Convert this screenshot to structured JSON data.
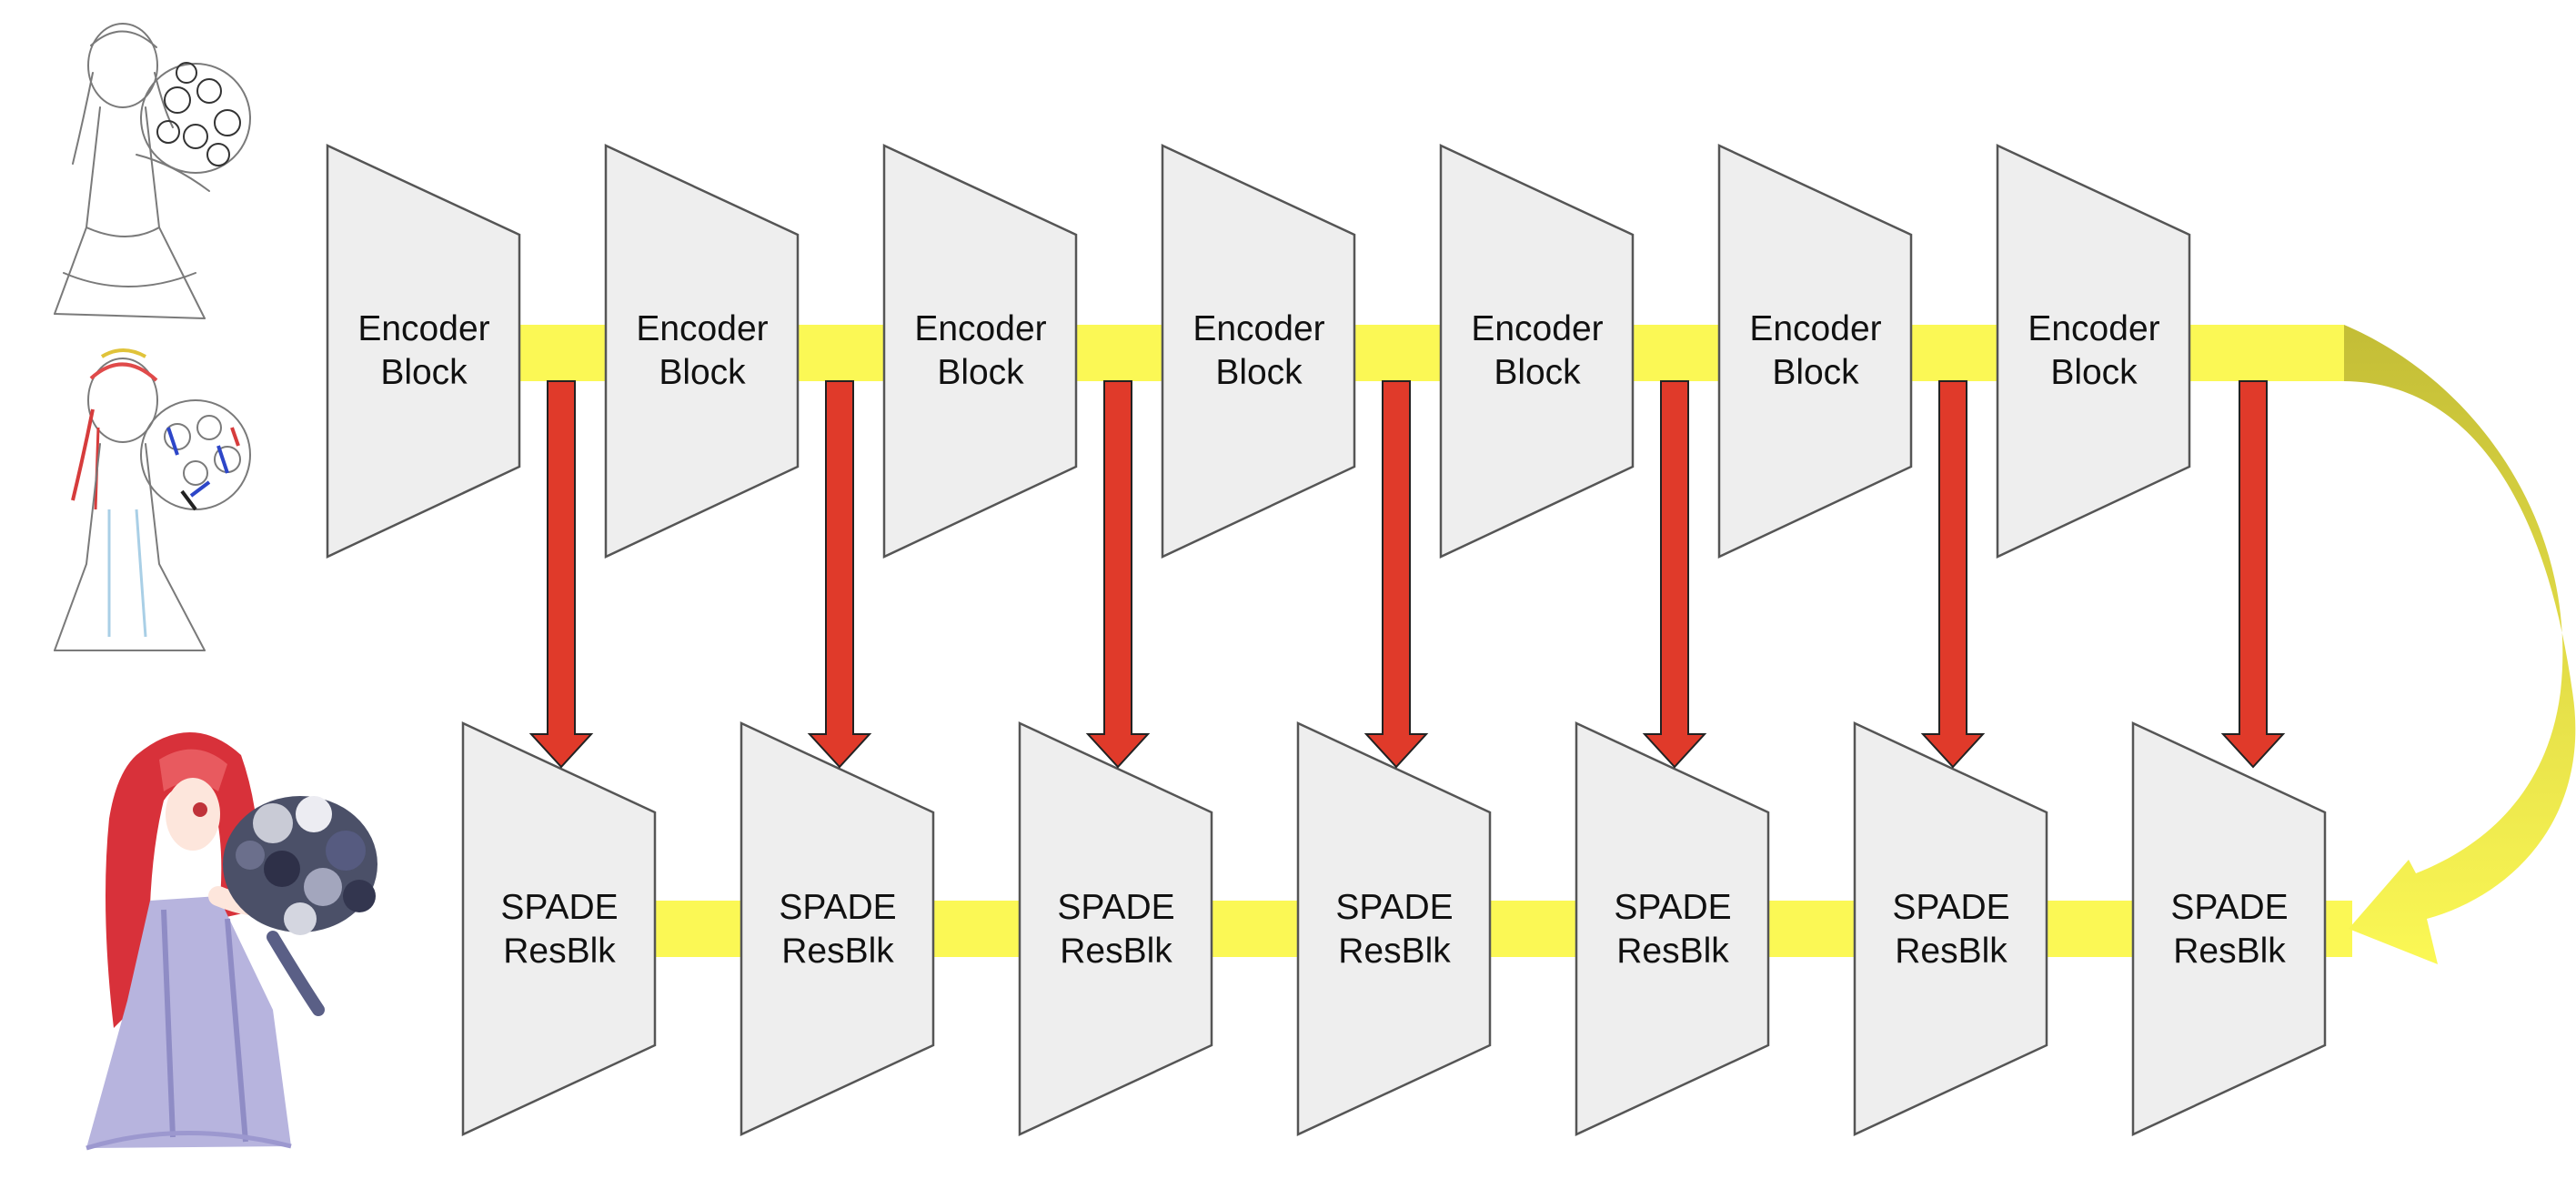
{
  "encoder": {
    "blocks": [
      {
        "line1": "Encoder",
        "line2": "Block"
      },
      {
        "line1": "Encoder",
        "line2": "Block"
      },
      {
        "line1": "Encoder",
        "line2": "Block"
      },
      {
        "line1": "Encoder",
        "line2": "Block"
      },
      {
        "line1": "Encoder",
        "line2": "Block"
      },
      {
        "line1": "Encoder",
        "line2": "Block"
      },
      {
        "line1": "Encoder",
        "line2": "Block"
      }
    ]
  },
  "decoder": {
    "blocks": [
      {
        "line1": "SPADE",
        "line2": "ResBlk"
      },
      {
        "line1": "SPADE",
        "line2": "ResBlk"
      },
      {
        "line1": "SPADE",
        "line2": "ResBlk"
      },
      {
        "line1": "SPADE",
        "line2": "ResBlk"
      },
      {
        "line1": "SPADE",
        "line2": "ResBlk"
      },
      {
        "line1": "SPADE",
        "line2": "ResBlk"
      },
      {
        "line1": "SPADE",
        "line2": "ResBlk"
      }
    ]
  },
  "colors": {
    "block_fill": "#eeeeee",
    "block_stroke": "#555555",
    "flow_yellow": "#fbf855",
    "skip_red": "#e03a2a",
    "curve_olive": "#c9c33c"
  },
  "images": {
    "input_sketch": "line-art-sketch-image",
    "input_hint": "color-hint-sketch-image",
    "output": "colorized-illustration-image"
  }
}
